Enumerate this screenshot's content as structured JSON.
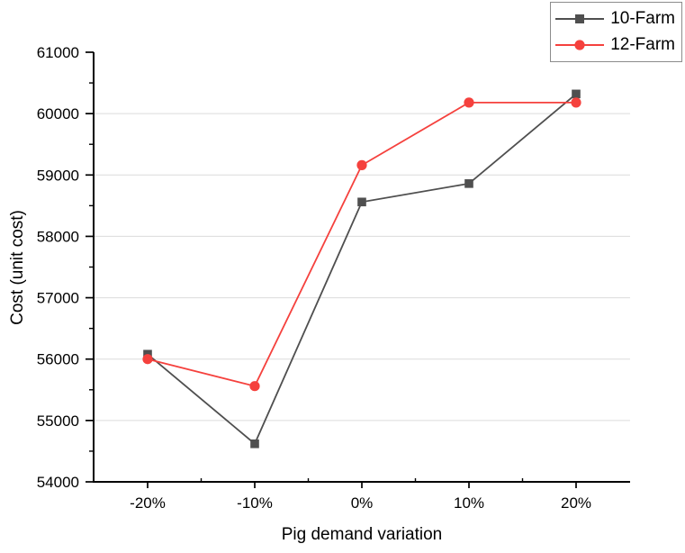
{
  "chart_data": {
    "type": "line",
    "title": "",
    "xlabel": "Pig demand variation",
    "ylabel": "Cost (unit cost)",
    "categories": [
      "-20%",
      "-10%",
      "0%",
      "10%",
      "20%"
    ],
    "series": [
      {
        "name": "10-Farm",
        "color": "#4f4f4f",
        "marker": "square",
        "values": [
          56080,
          54620,
          58560,
          58860,
          60320
        ]
      },
      {
        "name": "12-Farm",
        "color": "#f5413d",
        "marker": "circle",
        "values": [
          56000,
          55560,
          59160,
          60180,
          60180
        ]
      }
    ],
    "ylim": [
      54000,
      61000
    ],
    "ytick_step": 1000,
    "y_tick_labels": [
      "54000",
      "55000",
      "56000",
      "57000",
      "58000",
      "59000",
      "60000",
      "61000"
    ],
    "x_tick_labels": [
      "-20%",
      "-10%",
      "0%",
      "10%",
      "20%"
    ],
    "grid": "horizontal-major",
    "gridline_color": "#dcdcdc",
    "axis_color": "#000000",
    "background_color": "#ffffff",
    "legend_position": "top-right"
  }
}
